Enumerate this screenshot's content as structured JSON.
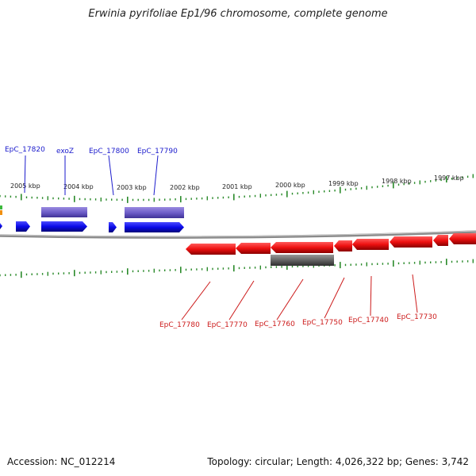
{
  "title": "Erwinia pyrifoliae Ep1/96 chromosome, complete genome",
  "footer": {
    "accession": "Accession: NC_012214",
    "stats": "Topology: circular; Length: 4,026,322 bp; Genes: 3,742"
  },
  "scale_labels": [
    "2005 kbp",
    "2004 kbp",
    "2003 kbp",
    "2002 kbp",
    "2001 kbp",
    "2000 kbp",
    "1999 kbp",
    "1998 kbp",
    "1997 kbp"
  ],
  "forward_genes": [
    "EpC_17820",
    "exoZ",
    "EpC_17800",
    "EpC_17790"
  ],
  "reverse_genes": [
    "EpC_17780",
    "EpC_17770",
    "EpC_17760",
    "EpC_17750",
    "EpC_17740",
    "EpC_17730"
  ],
  "colors": {
    "forward": "#1010e0",
    "forward_bar": "#7060c8",
    "reverse": "#ee1010",
    "reverse_bar": "#666666",
    "ticks": "#2a8a2a",
    "backbone": "#888888"
  }
}
